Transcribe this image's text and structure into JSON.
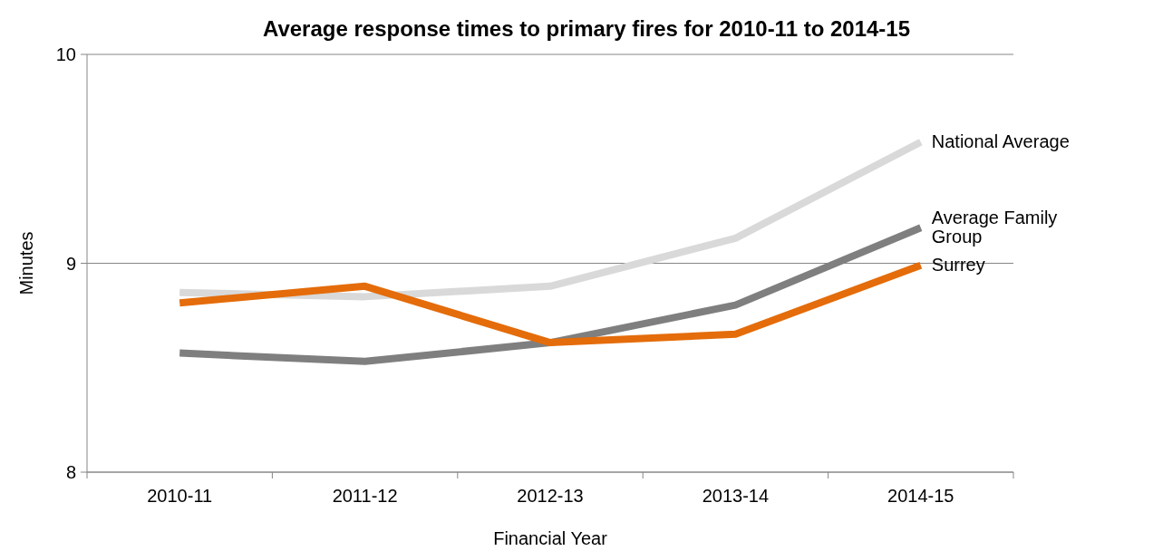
{
  "chart_data": {
    "type": "line",
    "title": "Average response times to primary fires for 2010-11 to 2014-15",
    "xlabel": "Financial Year",
    "ylabel": "Minutes",
    "categories": [
      "2010-11",
      "2011-12",
      "2012-13",
      "2013-14",
      "2014-15"
    ],
    "ylim": [
      8,
      10
    ],
    "yticks": [
      8,
      9,
      10
    ],
    "grid": "y",
    "legend": false,
    "marker": "none",
    "line_style": "solid",
    "series": [
      {
        "name": "National Average",
        "color": "#d9d9d9",
        "values": [
          8.86,
          8.84,
          8.89,
          9.12,
          9.58
        ]
      },
      {
        "name": "Average Family Group",
        "color": "#7f7f7f",
        "values": [
          8.57,
          8.53,
          8.62,
          8.8,
          9.17
        ]
      },
      {
        "name": "Surrey",
        "color": "#e46c0a",
        "values": [
          8.81,
          8.89,
          8.62,
          8.66,
          8.99
        ]
      }
    ]
  }
}
